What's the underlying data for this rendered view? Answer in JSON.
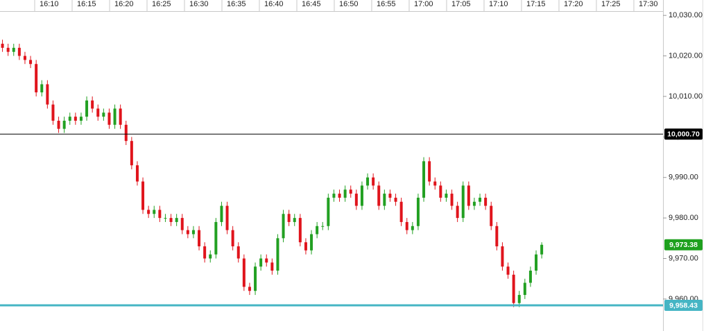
{
  "chart_data": {
    "type": "candlestick",
    "up_color": "#22a022",
    "down_color": "#e0141c",
    "xlim": [
      965.37,
      1053.8
    ],
    "xticks": [
      {
        "value": 970,
        "label": "16:10"
      },
      {
        "value": 975,
        "label": "16:15"
      },
      {
        "value": 980,
        "label": "16:20"
      },
      {
        "value": 985,
        "label": "16:25"
      },
      {
        "value": 990,
        "label": "16:30"
      },
      {
        "value": 995,
        "label": "16:35"
      },
      {
        "value": 1000,
        "label": "16:40"
      },
      {
        "value": 1005,
        "label": "16:45"
      },
      {
        "value": 1010,
        "label": "16:50"
      },
      {
        "value": 1015,
        "label": "16:55"
      },
      {
        "value": 1020,
        "label": "17:00"
      },
      {
        "value": 1025,
        "label": "17:05"
      },
      {
        "value": 1030,
        "label": "17:10"
      },
      {
        "value": 1035,
        "label": "17:15"
      },
      {
        "value": 1040,
        "label": "17:20"
      },
      {
        "value": 1045,
        "label": "17:25"
      },
      {
        "value": 1050,
        "label": "17:30"
      }
    ],
    "ylim": [
      9953.3,
      10031.4
    ],
    "yticks": [
      {
        "value": 9960,
        "label": "9,960.00"
      },
      {
        "value": 9970,
        "label": "9,970.00"
      },
      {
        "value": 9980,
        "label": "9,980.00"
      },
      {
        "value": 9990,
        "label": "9,990.00"
      },
      {
        "value": 10000,
        "label": "10,000.00"
      },
      {
        "value": 10010,
        "label": "10,010.00"
      },
      {
        "value": 10020,
        "label": "10,020.00"
      },
      {
        "value": 10030,
        "label": "10,030.00"
      }
    ],
    "reference_lines": [
      {
        "value": 10000.7,
        "label": "10,000.70",
        "color": "#000000"
      },
      {
        "value": 9958.43,
        "label": "9,958.43",
        "color": "#45b5c4"
      }
    ],
    "last_price": {
      "value": 9973.38,
      "label": "9,973.38",
      "color": "#1ea01e"
    },
    "x": [
      965.7,
      966.45,
      967.2,
      967.95,
      968.7,
      969.45,
      970.2,
      970.95,
      971.7,
      972.45,
      973.2,
      973.95,
      974.7,
      975.45,
      976.2,
      976.95,
      977.7,
      978.45,
      979.2,
      979.95,
      980.7,
      981.45,
      982.2,
      982.95,
      983.7,
      984.45,
      985.2,
      985.95,
      986.7,
      987.45,
      988.2,
      988.95,
      989.7,
      990.45,
      991.2,
      991.95,
      992.7,
      993.45,
      994.2,
      994.95,
      995.7,
      996.45,
      997.2,
      997.95,
      998.7,
      999.45,
      1000.2,
      1000.95,
      1001.7,
      1002.45,
      1003.2,
      1003.95,
      1004.7,
      1005.45,
      1006.2,
      1006.95,
      1007.7,
      1008.45,
      1009.2,
      1009.95,
      1010.7,
      1011.45,
      1012.2,
      1012.95,
      1013.7,
      1014.45,
      1015.2,
      1015.95,
      1016.7,
      1017.45,
      1018.2,
      1018.95,
      1019.7,
      1020.45,
      1021.2,
      1021.95,
      1022.7,
      1023.45,
      1024.2,
      1024.95,
      1025.7,
      1026.45,
      1027.2,
      1027.95,
      1028.7,
      1029.45,
      1030.2,
      1030.95,
      1031.7,
      1032.45,
      1033.2,
      1033.95,
      1034.7,
      1035.45,
      1036.2,
      1036.95,
      1037.7
    ],
    "open": [
      10023,
      10022,
      10021,
      10022,
      10020,
      10019,
      10018,
      10011,
      10013,
      10008,
      10004,
      10002,
      10004,
      10005,
      10004,
      10005,
      10009,
      10007,
      10005,
      10006,
      10003,
      10007,
      10003,
      9999,
      9993,
      9989,
      9982,
      9981,
      9982,
      9980,
      9980,
      9979,
      9980,
      9977,
      9976,
      9977,
      9973,
      9970,
      9971,
      9979,
      9983,
      9977,
      9973,
      9970,
      9963,
      9962,
      9968,
      9970,
      9969,
      9967,
      9975,
      9981,
      9979,
      9980,
      9974,
      9972,
      9976,
      9978,
      9978,
      9985,
      9986,
      9985,
      9987,
      9986,
      9983,
      9988,
      9990,
      9988,
      9983,
      9986,
      9985,
      9984,
      9979,
      9977,
      9978,
      9985,
      9994,
      9989,
      9988,
      9985,
      9986,
      9983,
      9980,
      9988,
      9983,
      9984,
      9985,
      9983,
      9978,
      9973,
      9968,
      9966,
      9959,
      9961,
      9964,
      9967,
      9971
    ],
    "high": [
      10024,
      10023,
      10023,
      10023,
      10021,
      10020,
      10019,
      10014,
      10014,
      10009,
      10005,
      10005,
      10006,
      10006,
      10006,
      10010,
      10010,
      10008,
      10007,
      10007,
      10008,
      10008,
      10004,
      10000,
      9994,
      9990,
      9983,
      9983,
      9983,
      9981,
      9981,
      9981,
      9981,
      9978,
      9978,
      9978,
      9974,
      9972,
      9980,
      9984,
      9984,
      9978,
      9974,
      9971,
      9964,
      9969,
      9971,
      9971,
      9970,
      9976,
      9982,
      9982,
      9981,
      9981,
      9975,
      9977,
      9979,
      9979,
      9986,
      9987,
      9987,
      9988,
      9988,
      9987,
      9989,
      9991,
      9991,
      9989,
      9987,
      9987,
      9986,
      9985,
      9980,
      9979,
      9986,
      9995,
      9995,
      9990,
      9989,
      9987,
      9987,
      9984,
      9989,
      9989,
      9985,
      9986,
      9986,
      9984,
      9979,
      9974,
      9969,
      9967,
      9962,
      9965,
      9968,
      9972,
      9974
    ],
    "low": [
      10021,
      10020,
      10020,
      10019,
      10018,
      10017,
      10010,
      10010,
      10007,
      10003,
      10001,
      10001,
      10003,
      10003,
      10003,
      10004,
      10006,
      10004,
      10004,
      10002,
      10002,
      10002,
      9998,
      9992,
      9988,
      9981,
      9980,
      9980,
      9979,
      9979,
      9978,
      9978,
      9976,
      9975,
      9975,
      9972,
      9969,
      9969,
      9970,
      9978,
      9976,
      9972,
      9969,
      9962,
      9961,
      9961,
      9967,
      9968,
      9966,
      9966,
      9974,
      9978,
      9978,
      9973,
      9971,
      9971,
      9975,
      9977,
      9977,
      9984,
      9984,
      9984,
      9985,
      9982,
      9982,
      9987,
      9987,
      9982,
      9982,
      9984,
      9983,
      9978,
      9976,
      9976,
      9977,
      9984,
      9988,
      9987,
      9984,
      9984,
      9982,
      9979,
      9979,
      9982,
      9982,
      9983,
      9982,
      9977,
      9972,
      9967,
      9965,
      9958,
      9958,
      9960,
      9963,
      9966,
      9970
    ],
    "close": [
      10022,
      10021,
      10022,
      10020,
      10019,
      10018,
      10011,
      10013,
      10008,
      10004,
      10002,
      10004,
      10005,
      10004,
      10005,
      10009,
      10007,
      10005,
      10006,
      10003,
      10007,
      10003,
      9999,
      9993,
      9989,
      9982,
      9981,
      9982,
      9980,
      9980,
      9979,
      9980,
      9977,
      9976,
      9977,
      9973,
      9970,
      9971,
      9979,
      9983,
      9977,
      9973,
      9970,
      9963,
      9962,
      9968,
      9970,
      9969,
      9967,
      9975,
      9981,
      9979,
      9980,
      9974,
      9972,
      9976,
      9978,
      9978,
      9985,
      9986,
      9985,
      9987,
      9986,
      9983,
      9988,
      9990,
      9988,
      9983,
      9986,
      9985,
      9984,
      9979,
      9977,
      9978,
      9985,
      9994,
      9989,
      9988,
      9985,
      9986,
      9983,
      9980,
      9988,
      9983,
      9984,
      9985,
      9983,
      9978,
      9973,
      9968,
      9966,
      9959,
      9961,
      9964,
      9967,
      9971,
      9973.38
    ]
  }
}
